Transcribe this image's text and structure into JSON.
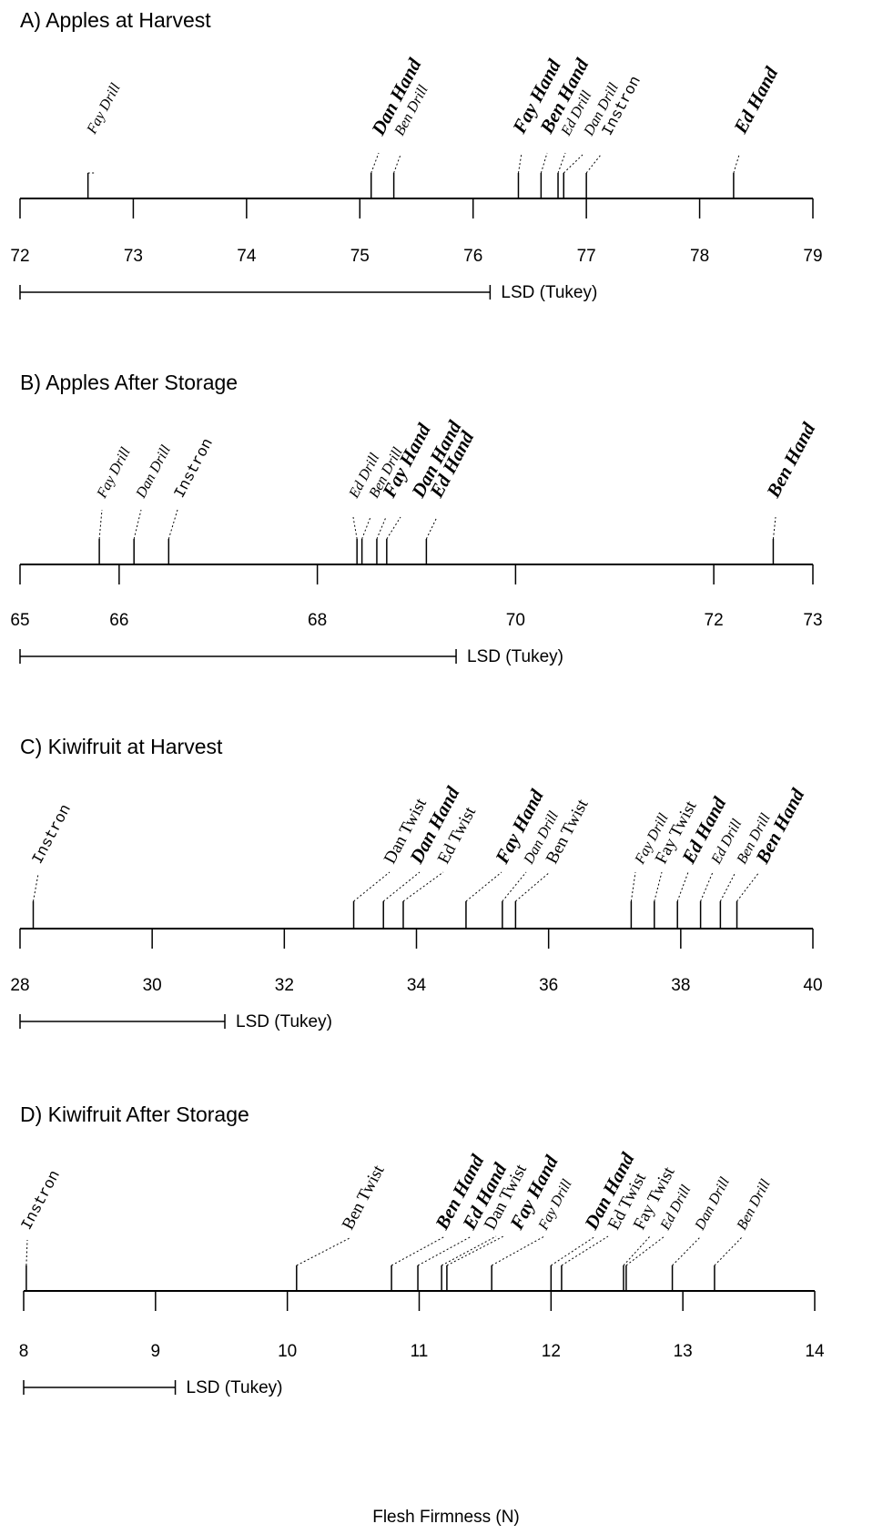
{
  "xlabel": "Flesh Firmness (N)",
  "chart_data": [
    {
      "type": "scatter",
      "title": "A) Apples at Harvest",
      "xlim": [
        72,
        79
      ],
      "ticks": [
        72,
        73,
        74,
        75,
        76,
        77,
        78,
        79
      ],
      "lsd": {
        "label": "LSD (Tukey)",
        "value": 4.15
      },
      "points": [
        {
          "label": "Fay Drill",
          "value": 72.6,
          "method": "drill"
        },
        {
          "label": "Dan Hand",
          "value": 75.1,
          "method": "hand"
        },
        {
          "label": "Ben Drill",
          "value": 75.3,
          "method": "drill"
        },
        {
          "label": "Fay Hand",
          "value": 76.4,
          "method": "hand"
        },
        {
          "label": "Ben Hand",
          "value": 76.6,
          "method": "hand"
        },
        {
          "label": "Ed Drill",
          "value": 76.75,
          "method": "drill"
        },
        {
          "label": "Dan Drill",
          "value": 76.8,
          "method": "drill"
        },
        {
          "label": "Instron",
          "value": 77.0,
          "method": "instron"
        },
        {
          "label": "Ed Hand",
          "value": 78.3,
          "method": "hand"
        }
      ]
    },
    {
      "type": "scatter",
      "title": "B) Apples After Storage",
      "xlim": [
        65,
        73
      ],
      "ticks": [
        65,
        66,
        68,
        70,
        72,
        73
      ],
      "lsd": {
        "label": "LSD (Tukey)",
        "value": 4.4
      },
      "points": [
        {
          "label": "Fay Drill",
          "value": 65.8,
          "method": "drill"
        },
        {
          "label": "Dan Drill",
          "value": 66.15,
          "method": "drill"
        },
        {
          "label": "Instron",
          "value": 66.5,
          "method": "instron"
        },
        {
          "label": "Ed Drill",
          "value": 68.4,
          "method": "drill"
        },
        {
          "label": "Ben Drill",
          "value": 68.45,
          "method": "drill"
        },
        {
          "label": "Fay Hand",
          "value": 68.6,
          "method": "hand"
        },
        {
          "label": "Dan Hand",
          "value": 68.7,
          "method": "hand"
        },
        {
          "label": "Ed Hand",
          "value": 69.1,
          "method": "hand"
        },
        {
          "label": "Ben Hand",
          "value": 72.6,
          "method": "hand"
        }
      ]
    },
    {
      "type": "scatter",
      "title": "C) Kiwifruit at Harvest",
      "xlim": [
        28,
        40
      ],
      "ticks": [
        28,
        30,
        32,
        34,
        36,
        38,
        40
      ],
      "lsd": {
        "label": "LSD (Tukey)",
        "value": 3.1
      },
      "points": [
        {
          "label": "Instron",
          "value": 28.2,
          "method": "instron"
        },
        {
          "label": "Dan Twist",
          "value": 33.05,
          "method": "twist"
        },
        {
          "label": "Dan Hand",
          "value": 33.5,
          "method": "hand"
        },
        {
          "label": "Ed Twist",
          "value": 33.8,
          "method": "twist"
        },
        {
          "label": "Fay Hand",
          "value": 34.75,
          "method": "hand"
        },
        {
          "label": "Dan Drill",
          "value": 35.3,
          "method": "drill"
        },
        {
          "label": "Ben Twist",
          "value": 35.5,
          "method": "twist"
        },
        {
          "label": "Fay Drill",
          "value": 37.25,
          "method": "drill"
        },
        {
          "label": "Fay Twist",
          "value": 37.6,
          "method": "twist"
        },
        {
          "label": "Ed Hand",
          "value": 37.95,
          "method": "hand"
        },
        {
          "label": "Ed Drill",
          "value": 38.3,
          "method": "drill"
        },
        {
          "label": "Ben Drill",
          "value": 38.6,
          "method": "drill"
        },
        {
          "label": "Ben Hand",
          "value": 38.85,
          "method": "hand"
        }
      ]
    },
    {
      "type": "scatter",
      "title": "D) Kiwifruit After Storage",
      "xlim": [
        8,
        14
      ],
      "ticks": [
        8,
        9,
        10,
        11,
        12,
        13,
        14
      ],
      "lsd": {
        "label": "LSD (Tukey)",
        "value": 1.15
      },
      "points": [
        {
          "label": "Instron",
          "value": 8.02,
          "method": "instron"
        },
        {
          "label": "Ben Twist",
          "value": 10.07,
          "method": "twist"
        },
        {
          "label": "Ben Hand",
          "value": 10.79,
          "method": "hand"
        },
        {
          "label": "Ed Hand",
          "value": 10.99,
          "method": "hand"
        },
        {
          "label": "Dan Twist",
          "value": 11.17,
          "method": "twist"
        },
        {
          "label": "Fay Hand",
          "value": 11.21,
          "method": "hand"
        },
        {
          "label": "Fay Drill",
          "value": 11.55,
          "method": "drill"
        },
        {
          "label": "Dan Hand",
          "value": 12.0,
          "method": "hand"
        },
        {
          "label": "Ed Twist",
          "value": 12.08,
          "method": "twist"
        },
        {
          "label": "Fay Twist",
          "value": 12.55,
          "method": "twist"
        },
        {
          "label": "Ed Drill",
          "value": 12.57,
          "method": "drill"
        },
        {
          "label": "Dan Drill",
          "value": 12.92,
          "method": "drill"
        },
        {
          "label": "Ben Drill",
          "value": 13.24,
          "method": "drill"
        }
      ]
    }
  ]
}
